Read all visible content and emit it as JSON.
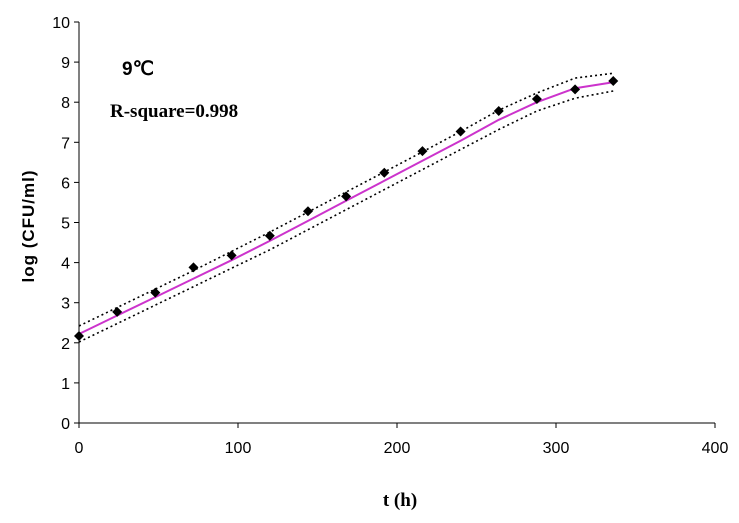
{
  "chart_data": {
    "type": "scatter",
    "title": "",
    "xlabel": "t (h)",
    "ylabel": "log (CFU/ml)",
    "xlim": [
      0,
      400
    ],
    "ylim": [
      0,
      10
    ],
    "x_ticks": [
      0,
      100,
      200,
      300,
      400
    ],
    "y_ticks": [
      0,
      1,
      2,
      3,
      4,
      5,
      6,
      7,
      8,
      9,
      10
    ],
    "grid": false,
    "annotations": [
      "9℃",
      "R-square=0.998"
    ],
    "colors": {
      "fit": "#cc33cc",
      "points": "#000000",
      "band": "#000000"
    },
    "series": [
      {
        "kind": "points",
        "x": [
          0,
          24,
          48,
          72,
          96,
          120,
          144,
          168,
          192,
          216,
          240,
          264,
          288,
          312,
          336
        ],
        "y": [
          2.17,
          2.77,
          3.25,
          3.88,
          4.18,
          4.67,
          5.28,
          5.65,
          6.24,
          6.78,
          7.27,
          7.78,
          8.08,
          8.32,
          8.53
        ]
      },
      {
        "kind": "fit",
        "x": [
          0,
          24,
          48,
          72,
          96,
          120,
          144,
          168,
          192,
          216,
          240,
          264,
          288,
          312,
          336
        ],
        "y": [
          2.22,
          2.68,
          3.14,
          3.6,
          4.06,
          4.54,
          5.04,
          5.54,
          6.04,
          6.54,
          7.04,
          7.56,
          8.0,
          8.35,
          8.5
        ]
      },
      {
        "kind": "upper-band",
        "x": [
          0,
          24,
          48,
          72,
          96,
          120,
          144,
          168,
          192,
          216,
          240,
          264,
          288,
          312,
          336
        ],
        "y": [
          2.42,
          2.88,
          3.34,
          3.8,
          4.28,
          4.76,
          5.26,
          5.76,
          6.26,
          6.76,
          7.27,
          7.8,
          8.23,
          8.6,
          8.72
        ]
      },
      {
        "kind": "lower-band",
        "x": [
          0,
          24,
          48,
          72,
          96,
          120,
          144,
          168,
          192,
          216,
          240,
          264,
          288,
          312,
          336
        ],
        "y": [
          2.02,
          2.48,
          2.94,
          3.4,
          3.86,
          4.32,
          4.82,
          5.32,
          5.82,
          6.32,
          6.82,
          7.32,
          7.78,
          8.1,
          8.28
        ]
      }
    ]
  }
}
